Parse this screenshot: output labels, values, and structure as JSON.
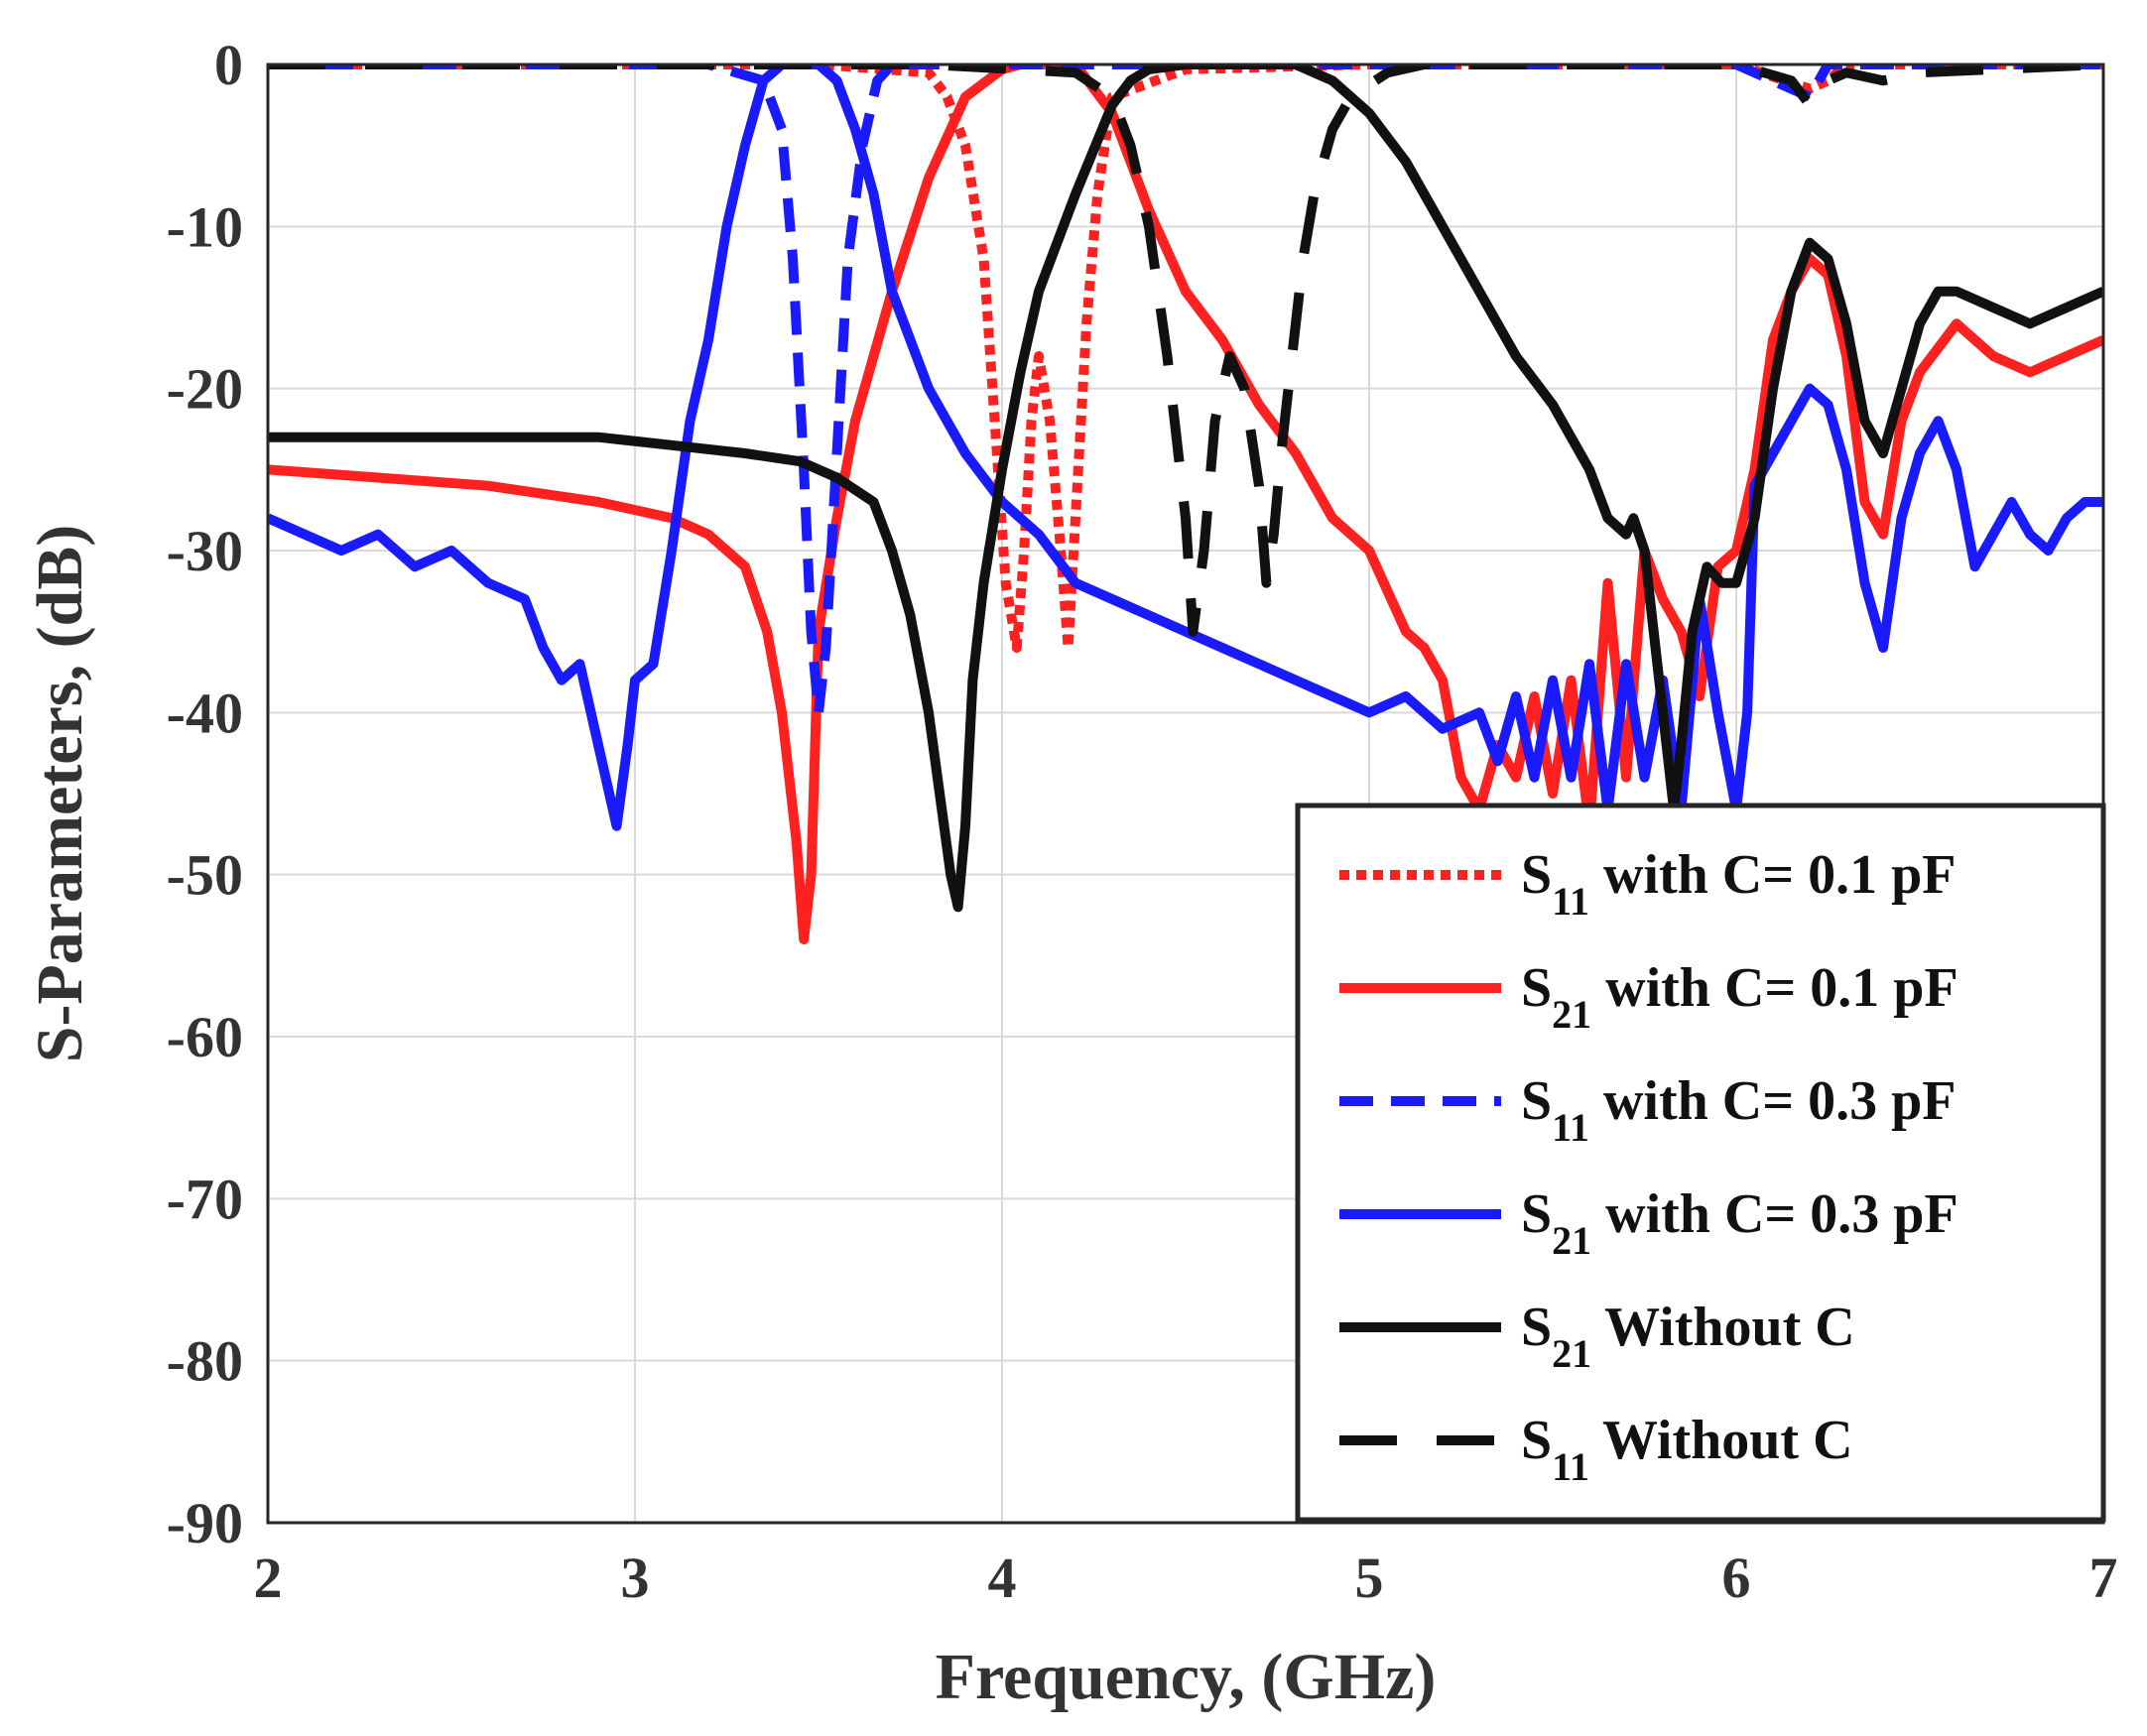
{
  "chart_data": {
    "type": "line",
    "xlabel": "Frequency, (GHz)",
    "ylabel": "S-Parameters, (dB)",
    "xlim": [
      2,
      7
    ],
    "ylim": [
      -90,
      0
    ],
    "xticks": [
      2,
      3,
      4,
      5,
      6,
      7
    ],
    "yticks": [
      0,
      -10,
      -20,
      -30,
      -40,
      -50,
      -60,
      -70,
      -80,
      -90
    ],
    "grid": true,
    "legend_position": "bottom-right",
    "series": [
      {
        "name": "S11 with C= 0.1 pF",
        "legend_main": "S",
        "legend_sub": "11",
        "legend_rest": "  with C= 0.1 pF",
        "color": "#ff2020",
        "style": "dotted",
        "x": [
          2,
          3.5,
          3.8,
          3.85,
          3.9,
          3.95,
          3.98,
          4.01,
          4.04,
          4.06,
          4.08,
          4.1,
          4.13,
          4.16,
          4.18,
          4.2,
          4.23,
          4.26,
          4.3,
          4.5,
          5,
          6,
          6.2,
          6.25,
          6.3,
          7
        ],
        "y": [
          0,
          0,
          -0.5,
          -2,
          -5,
          -12,
          -22,
          -32,
          -36,
          -30,
          -22,
          -18,
          -22,
          -30,
          -36,
          -28,
          -16,
          -8,
          -2,
          -0.3,
          0,
          0,
          -1.5,
          -1,
          0,
          0
        ]
      },
      {
        "name": "S21 with C= 0.1 pF",
        "legend_main": "S",
        "legend_sub": "21",
        "legend_rest": " with C= 0.1 pF",
        "color": "#ff2020",
        "style": "solid",
        "x": [
          2,
          2.3,
          2.6,
          2.9,
          3.1,
          3.2,
          3.3,
          3.36,
          3.4,
          3.44,
          3.46,
          3.48,
          3.5,
          3.55,
          3.6,
          3.7,
          3.8,
          3.9,
          4.0,
          4.05,
          4.1,
          4.2,
          4.3,
          4.4,
          4.5,
          4.6,
          4.7,
          4.8,
          4.9,
          5.0,
          5.1,
          5.15,
          5.2,
          5.25,
          5.3,
          5.35,
          5.4,
          5.45,
          5.5,
          5.55,
          5.6,
          5.65,
          5.7,
          5.75,
          5.8,
          5.85,
          5.9,
          5.95,
          6.0,
          6.05,
          6.1,
          6.15,
          6.2,
          6.25,
          6.3,
          6.35,
          6.4,
          6.45,
          6.5,
          6.6,
          6.7,
          6.8,
          6.9,
          7.0
        ],
        "y": [
          -25,
          -25.5,
          -26,
          -27,
          -28,
          -29,
          -31,
          -35,
          -40,
          -48,
          -54,
          -50,
          -35,
          -28,
          -22,
          -14,
          -7,
          -2,
          -0.3,
          0,
          0,
          0,
          -3,
          -9,
          -14,
          -17,
          -21,
          -24,
          -28,
          -30,
          -35,
          -36,
          -38,
          -44,
          -46,
          -42,
          -44,
          -39,
          -45,
          -38,
          -47,
          -32,
          -44,
          -30,
          -33,
          -35,
          -39,
          -31,
          -30,
          -25,
          -17,
          -14,
          -12,
          -13,
          -18,
          -27,
          -29,
          -22,
          -19,
          -16,
          -18,
          -19,
          -18,
          -17
        ]
      },
      {
        "name": "S11 with C= 0.3 pF",
        "legend_main": "S",
        "legend_sub": "11",
        "legend_rest": "  with C= 0.3 pF",
        "color": "#1a1aff",
        "style": "dashed",
        "x": [
          2,
          3.2,
          3.35,
          3.4,
          3.43,
          3.46,
          3.48,
          3.5,
          3.52,
          3.55,
          3.58,
          3.62,
          3.66,
          3.7,
          4,
          5,
          6,
          6.15,
          6.2,
          6.25,
          7
        ],
        "y": [
          0,
          0,
          -1,
          -4,
          -12,
          -25,
          -35,
          -40,
          -36,
          -24,
          -12,
          -5,
          -1,
          0,
          0,
          0,
          0,
          -1.5,
          -2,
          0,
          0
        ]
      },
      {
        "name": "S21 with C= 0.3 pF",
        "legend_main": "S",
        "legend_sub": "21",
        "legend_rest": "  with C= 0.3 pF",
        "color": "#1a1aff",
        "style": "solid",
        "x": [
          2,
          2.1,
          2.2,
          2.3,
          2.4,
          2.5,
          2.6,
          2.7,
          2.75,
          2.8,
          2.85,
          2.9,
          2.95,
          2.98,
          3.0,
          3.05,
          3.1,
          3.15,
          3.2,
          3.25,
          3.3,
          3.35,
          3.4,
          3.45,
          3.5,
          3.55,
          3.6,
          3.65,
          3.7,
          3.8,
          3.9,
          4.0,
          4.1,
          4.2,
          4.3,
          4.4,
          4.5,
          4.6,
          4.7,
          4.8,
          4.9,
          5.0,
          5.1,
          5.2,
          5.3,
          5.35,
          5.4,
          5.45,
          5.5,
          5.55,
          5.6,
          5.65,
          5.7,
          5.75,
          5.8,
          5.85,
          5.9,
          5.95,
          6.0,
          6.03,
          6.05,
          6.1,
          6.15,
          6.2,
          6.25,
          6.3,
          6.35,
          6.4,
          6.45,
          6.5,
          6.55,
          6.6,
          6.65,
          6.7,
          6.75,
          6.8,
          6.85,
          6.9,
          6.95,
          7.0
        ],
        "y": [
          -28,
          -29,
          -30,
          -29,
          -31,
          -30,
          -32,
          -33,
          -36,
          -38,
          -37,
          -42,
          -47,
          -42,
          -38,
          -37,
          -30,
          -22,
          -17,
          -10,
          -5,
          -1,
          0,
          0,
          0,
          -1,
          -4,
          -8,
          -14,
          -20,
          -24,
          -27,
          -29,
          -32,
          -33,
          -34,
          -35,
          -36,
          -37,
          -38,
          -39,
          -40,
          -39,
          -41,
          -40,
          -43,
          -39,
          -44,
          -38,
          -44,
          -37,
          -46,
          -37,
          -44,
          -38,
          -46,
          -33,
          -40,
          -46,
          -40,
          -26,
          -24,
          -22,
          -20,
          -21,
          -25,
          -32,
          -36,
          -28,
          -24,
          -22,
          -25,
          -31,
          -29,
          -27,
          -29,
          -30,
          -28,
          -27,
          -27
        ]
      },
      {
        "name": "S21 Without C",
        "legend_main": "S",
        "legend_sub": "21",
        "legend_rest": " Without C",
        "color": "#111111",
        "style": "solid",
        "x": [
          2,
          2.3,
          2.6,
          2.9,
          3.1,
          3.3,
          3.45,
          3.55,
          3.65,
          3.7,
          3.75,
          3.8,
          3.83,
          3.86,
          3.88,
          3.9,
          3.92,
          3.95,
          4.0,
          4.05,
          4.1,
          4.2,
          4.3,
          4.35,
          4.4,
          4.5,
          4.6,
          4.7,
          4.8,
          4.9,
          5.0,
          5.1,
          5.2,
          5.3,
          5.4,
          5.5,
          5.55,
          5.6,
          5.65,
          5.7,
          5.72,
          5.75,
          5.78,
          5.8,
          5.83,
          5.85,
          5.88,
          5.92,
          5.96,
          6.0,
          6.05,
          6.1,
          6.15,
          6.2,
          6.25,
          6.3,
          6.35,
          6.4,
          6.45,
          6.5,
          6.55,
          6.6,
          6.7,
          6.8,
          6.9,
          7.0
        ],
        "y": [
          -23,
          -23,
          -23,
          -23,
          -23.5,
          -24,
          -24.5,
          -25.5,
          -27,
          -30,
          -34,
          -40,
          -45,
          -50,
          -52,
          -47,
          -38,
          -32,
          -25,
          -19,
          -14,
          -8,
          -2.5,
          -1,
          -0.3,
          0,
          0,
          0,
          0,
          -1,
          -3,
          -6,
          -10,
          -14,
          -18,
          -21,
          -23,
          -25,
          -28,
          -29,
          -28,
          -30,
          -36,
          -40,
          -46,
          -42,
          -35,
          -31,
          -32,
          -32,
          -28,
          -20,
          -14,
          -11,
          -12,
          -16,
          -22,
          -24,
          -20,
          -16,
          -14,
          -14,
          -15,
          -16,
          -15,
          -14
        ]
      },
      {
        "name": "S11 Without C",
        "legend_main": "S",
        "legend_sub": "11",
        "legend_rest": " Without C",
        "color": "#111111",
        "style": "longdash",
        "x": [
          2,
          3.8,
          4.2,
          4.3,
          4.35,
          4.4,
          4.45,
          4.5,
          4.52,
          4.55,
          4.58,
          4.62,
          4.66,
          4.7,
          4.72,
          4.74,
          4.76,
          4.78,
          4.8,
          4.82,
          4.85,
          4.9,
          4.95,
          5.05,
          5.15,
          5.5,
          6.0,
          6.15,
          6.2,
          6.25,
          6.3,
          6.4,
          6.5,
          7
        ],
        "y": [
          0,
          0,
          -0.5,
          -2,
          -5,
          -10,
          -18,
          -28,
          -35,
          -30,
          -22,
          -18,
          -20,
          -26,
          -32,
          -29,
          -24,
          -20,
          -16,
          -12,
          -8,
          -4,
          -2,
          -0.5,
          0,
          0,
          0,
          -1,
          -2.5,
          -1,
          -0.5,
          -1,
          -0.5,
          0
        ]
      }
    ]
  }
}
